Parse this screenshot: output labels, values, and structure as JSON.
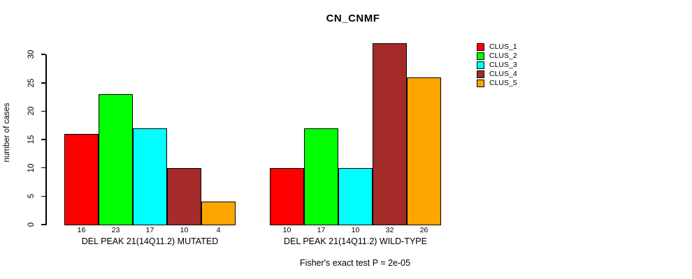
{
  "title": "CN_CNMF",
  "ylabel": "number of cases",
  "footer": "Fisher's exact test P = 2e-05",
  "legend": {
    "items": [
      {
        "label": "CLUS_1",
        "color": "#FF0000"
      },
      {
        "label": "CLUS_2",
        "color": "#00FF00"
      },
      {
        "label": "CLUS_3",
        "color": "#00FFFF"
      },
      {
        "label": "CLUS_4",
        "color": "#A52A2A"
      },
      {
        "label": "CLUS_5",
        "color": "#FFA500"
      }
    ]
  },
  "chart_data": {
    "type": "bar",
    "title": "CN_CNMF",
    "xlabel": "",
    "ylabel": "number of cases",
    "ylim": [
      0,
      30
    ],
    "yticks": [
      0,
      5,
      10,
      15,
      20,
      25,
      30
    ],
    "grid": false,
    "legend_position": "right",
    "series_names": [
      "CLUS_1",
      "CLUS_2",
      "CLUS_3",
      "CLUS_4",
      "CLUS_5"
    ],
    "series_colors": [
      "#FF0000",
      "#00FF00",
      "#00FFFF",
      "#A52A2A",
      "#FFA500"
    ],
    "groups": [
      {
        "label": "DEL PEAK 21(14Q11.2) MUTATED",
        "values": [
          16,
          23,
          17,
          10,
          4
        ]
      },
      {
        "label": "DEL PEAK 21(14Q11.2) WILD-TYPE",
        "values": [
          10,
          17,
          10,
          32,
          26
        ]
      }
    ],
    "bar_value_labels_shown": true,
    "annotation": "Fisher's exact test P = 2e-05"
  }
}
